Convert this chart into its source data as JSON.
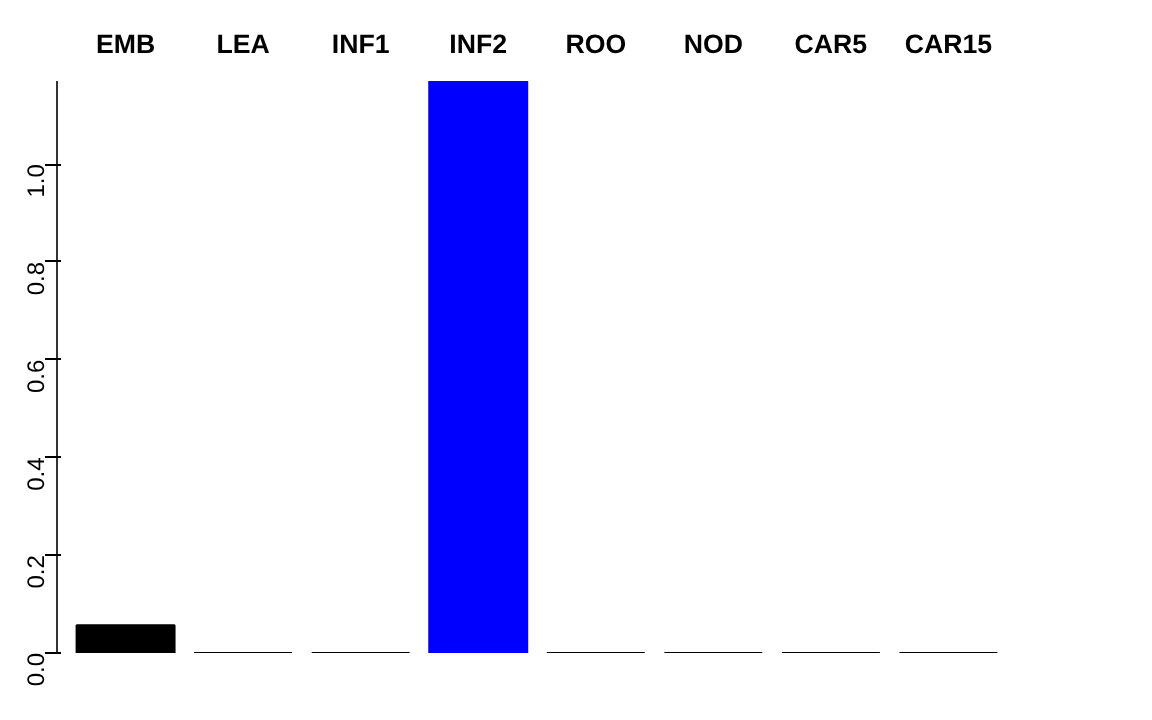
{
  "chart_data": {
    "type": "bar",
    "categories": [
      "EMB",
      "LEA",
      "INF1",
      "INF2",
      "ROO",
      "NOD",
      "CAR5",
      "CAR15"
    ],
    "values": [
      0.057,
      0,
      0,
      1.17,
      0,
      0,
      0,
      0
    ],
    "colors": [
      "#000000",
      "#000000",
      "#000000",
      "#0000ff",
      "#000000",
      "#000000",
      "#000000",
      "#000000"
    ],
    "ylim": [
      0,
      1.17
    ],
    "yticks": [
      {
        "value": 0,
        "label": "0.0"
      },
      {
        "value": 0.2,
        "label": "0.2"
      },
      {
        "value": 0.4,
        "label": "0.4"
      },
      {
        "value": 0.6,
        "label": "0.6"
      },
      {
        "value": 0.8,
        "label": "0.8"
      },
      {
        "value": 1,
        "label": "1.0"
      }
    ],
    "grid": false
  }
}
